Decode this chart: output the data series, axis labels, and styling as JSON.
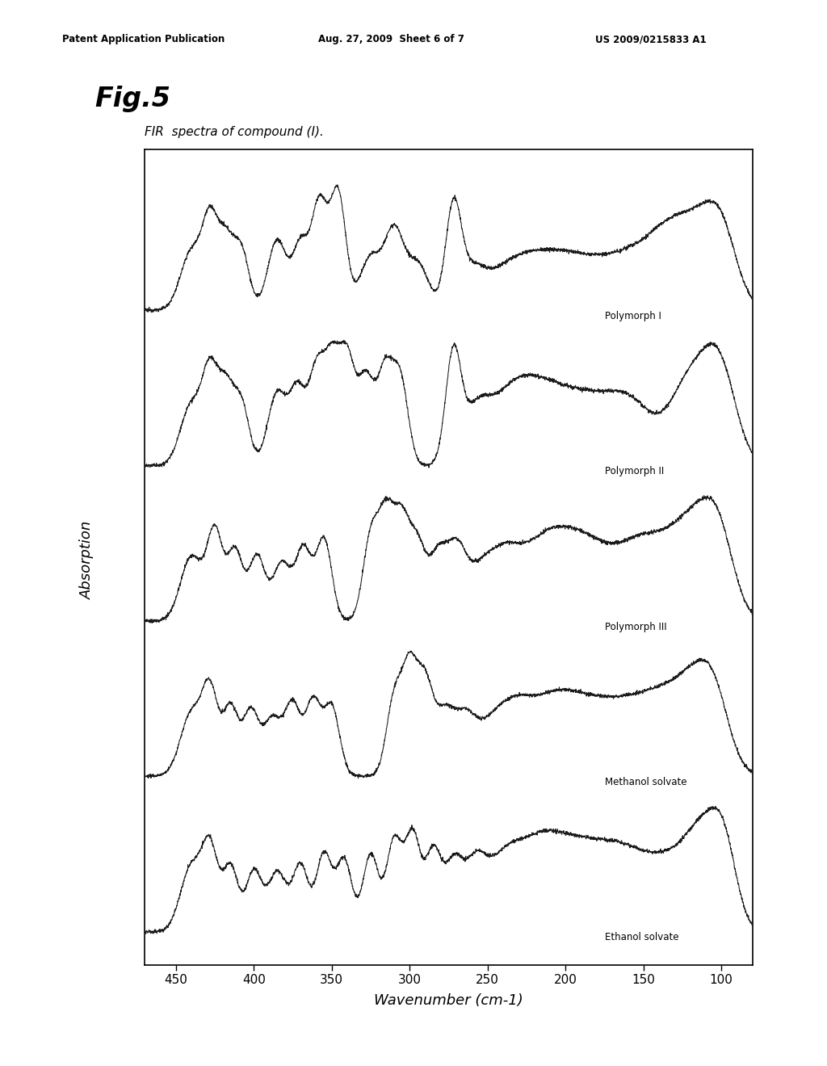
{
  "title": "Fig.5",
  "subtitle": "FIR  spectra of compound (I).",
  "xlabel": "Wavenumber (cm-1)",
  "ylabel": "Absorption",
  "xticks": [
    450,
    400,
    350,
    300,
    250,
    200,
    150,
    100
  ],
  "xmin": 470,
  "xmax": 80,
  "spectra_labels": [
    "Polymorph I",
    "Polymorph II",
    "Polymorph III",
    "Methanol solvate",
    "Ethanol solvate"
  ],
  "background_color": "#ffffff",
  "line_color": "#1a1a1a",
  "header_left": "Patent Application Publication",
  "header_center": "Aug. 27, 2009  Sheet 6 of 7",
  "header_right": "US 2009/0215833 A1"
}
